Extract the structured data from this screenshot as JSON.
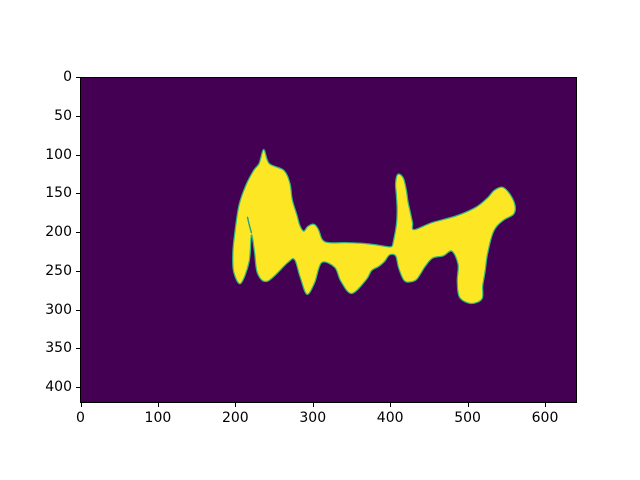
{
  "figure": {
    "background": "#ffffff",
    "title": ""
  },
  "chart_data": {
    "type": "heatmap",
    "subtype": "segmentation-mask-imshow",
    "colormap": "viridis",
    "title": "",
    "xlabel": "",
    "ylabel": "",
    "x_ticks": [
      0,
      100,
      200,
      300,
      400,
      500,
      600
    ],
    "y_ticks": [
      0,
      50,
      100,
      150,
      200,
      250,
      300,
      350,
      400
    ],
    "xlim": [
      -0.5,
      641.5
    ],
    "ylim": [
      420.5,
      -0.5
    ],
    "y_axis_inverted": true,
    "grid": false,
    "legend": false,
    "colors": {
      "background_value": "#440154",
      "mask_value": "#fde725",
      "mask_edge": "#35b779",
      "seam": "#1fa187",
      "axis": "#000000"
    },
    "mask_outline": [
      [
        237,
        93
      ],
      [
        244,
        111
      ],
      [
        263,
        120
      ],
      [
        271,
        137
      ],
      [
        274,
        158
      ],
      [
        280,
        178
      ],
      [
        284,
        192
      ],
      [
        289,
        199
      ],
      [
        294,
        193
      ],
      [
        302,
        190
      ],
      [
        308,
        197
      ],
      [
        313,
        210
      ],
      [
        322,
        214
      ],
      [
        345,
        214
      ],
      [
        368,
        215
      ],
      [
        384,
        217
      ],
      [
        396,
        219
      ],
      [
        403,
        219
      ],
      [
        405,
        213
      ],
      [
        409,
        191
      ],
      [
        410,
        171
      ],
      [
        409,
        152
      ],
      [
        408,
        137
      ],
      [
        411,
        125
      ],
      [
        418,
        130
      ],
      [
        422,
        146
      ],
      [
        424,
        160
      ],
      [
        427,
        174
      ],
      [
        430,
        188
      ],
      [
        432,
        197
      ],
      [
        455,
        188
      ],
      [
        487,
        179
      ],
      [
        512,
        168
      ],
      [
        527,
        156
      ],
      [
        536,
        146
      ],
      [
        547,
        142
      ],
      [
        557,
        152
      ],
      [
        563,
        166
      ],
      [
        561,
        177
      ],
      [
        549,
        184
      ],
      [
        539,
        193
      ],
      [
        533,
        205
      ],
      [
        527,
        230
      ],
      [
        524,
        252
      ],
      [
        521,
        270
      ],
      [
        520,
        287
      ],
      [
        506,
        293
      ],
      [
        491,
        285
      ],
      [
        488,
        264
      ],
      [
        489,
        242
      ],
      [
        481,
        225
      ],
      [
        470,
        231
      ],
      [
        456,
        234
      ],
      [
        447,
        244
      ],
      [
        440,
        255
      ],
      [
        435,
        262
      ],
      [
        427,
        265
      ],
      [
        419,
        263
      ],
      [
        412,
        247
      ],
      [
        408,
        231
      ],
      [
        400,
        230
      ],
      [
        394,
        238
      ],
      [
        386,
        245
      ],
      [
        377,
        250
      ],
      [
        370,
        262
      ],
      [
        351,
        280
      ],
      [
        337,
        264
      ],
      [
        329,
        246
      ],
      [
        312,
        240
      ],
      [
        303,
        266
      ],
      [
        293,
        281
      ],
      [
        284,
        258
      ],
      [
        277,
        236
      ],
      [
        268,
        240
      ],
      [
        242,
        264
      ],
      [
        229,
        254
      ],
      [
        225,
        226
      ],
      [
        221,
        204
      ],
      [
        218,
        239
      ],
      [
        207,
        267
      ],
      [
        198,
        252
      ],
      [
        197,
        226
      ],
      [
        200,
        197
      ],
      [
        205,
        165
      ],
      [
        214,
        139
      ],
      [
        224,
        120
      ],
      [
        231,
        111
      ]
    ],
    "seam_line": [
      [
        216,
        181
      ],
      [
        218,
        190
      ],
      [
        221,
        201
      ]
    ]
  }
}
